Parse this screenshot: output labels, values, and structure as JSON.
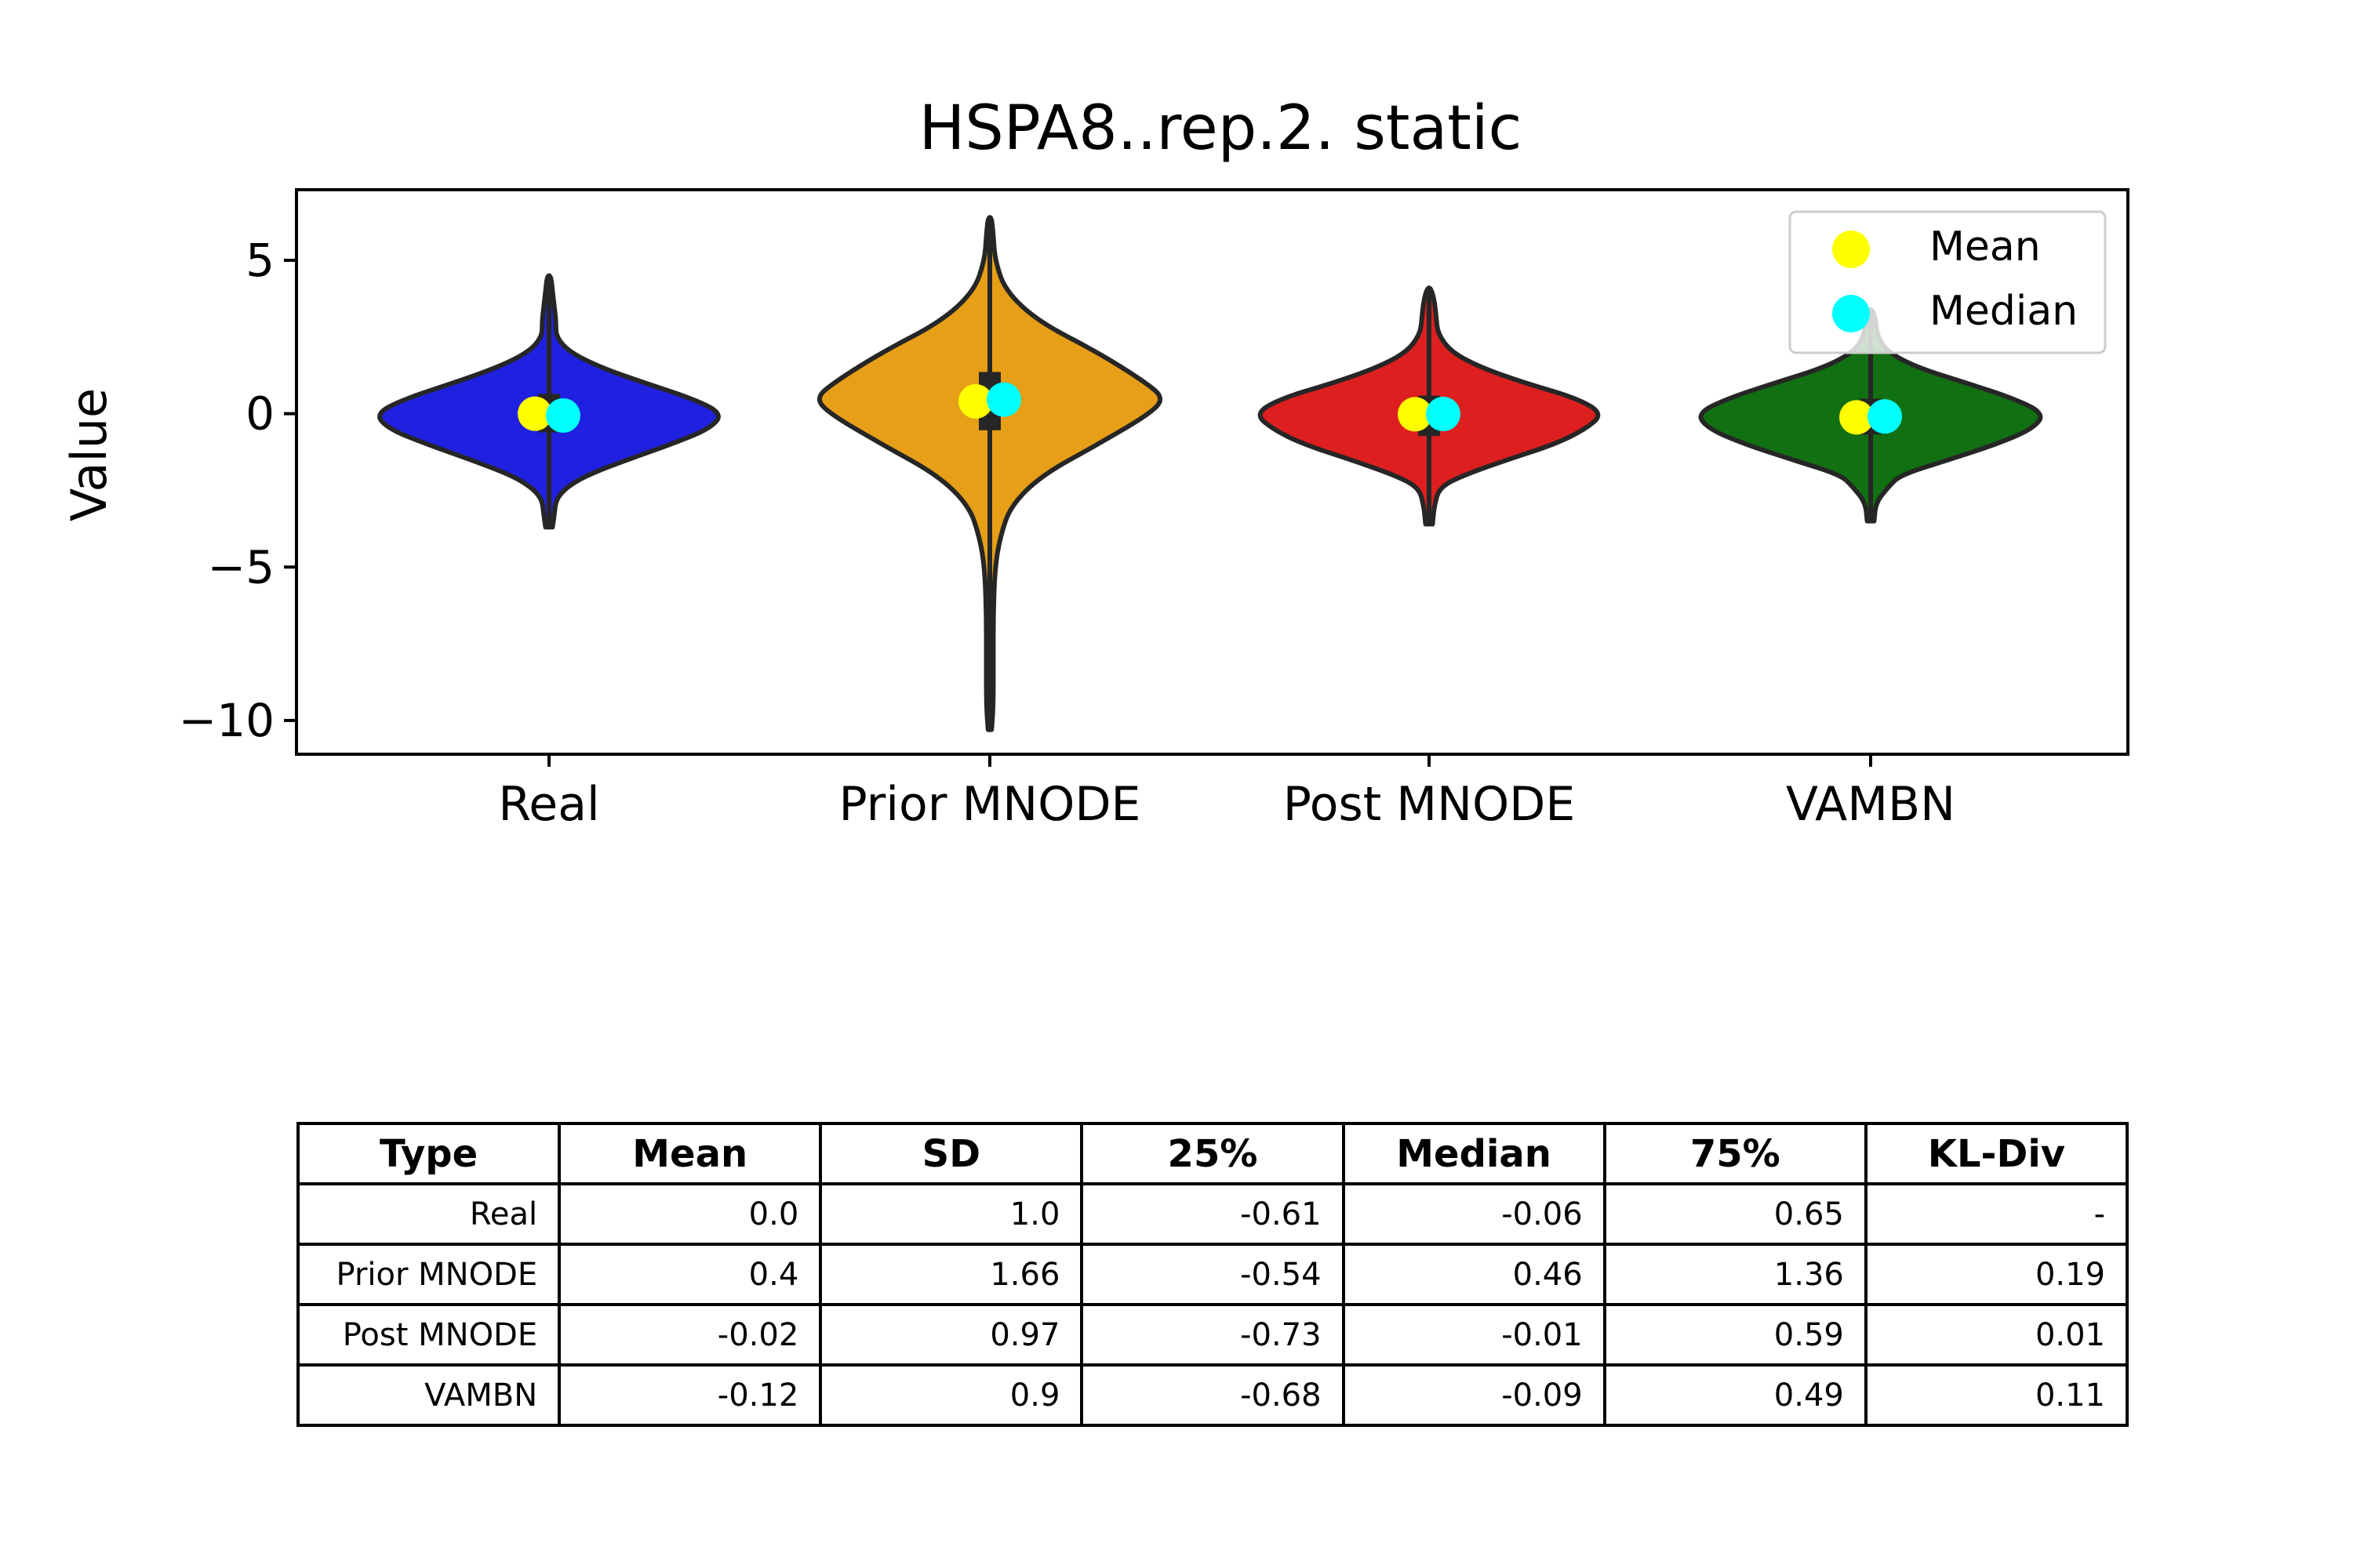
{
  "chart_data": {
    "type": "violin",
    "title": "HSPA8..rep.2. static",
    "ylabel": "Value",
    "xlabel": "",
    "ylim": [
      -11.1,
      7.3
    ],
    "yticks": [
      5,
      0,
      -5,
      -10
    ],
    "ytick_labels": [
      "5",
      "0",
      "−5",
      "−10"
    ],
    "categories": [
      "Real",
      "Prior MNODE",
      "Post MNODE",
      "VAMBN"
    ],
    "colors": [
      "#2020e0",
      "#e69f17",
      "#de1f1f",
      "#117011"
    ],
    "mean_color": "#ffff00",
    "median_color": "#00ffff",
    "legend": {
      "position": "top-right",
      "entries": [
        "Mean",
        "Median"
      ]
    },
    "series": [
      {
        "category": "Real",
        "mean": 0.0,
        "median": -0.06,
        "q1": -0.61,
        "q3": 0.65,
        "min": -3.7,
        "max": 4.5,
        "profile": [
          [
            -3.7,
            0.02
          ],
          [
            -3.3,
            0.03
          ],
          [
            -2.8,
            0.04
          ],
          [
            -2.4,
            0.1
          ],
          [
            -2.0,
            0.22
          ],
          [
            -1.5,
            0.45
          ],
          [
            -1.0,
            0.7
          ],
          [
            -0.5,
            0.92
          ],
          [
            0.0,
            1.0
          ],
          [
            0.5,
            0.82
          ],
          [
            1.0,
            0.55
          ],
          [
            1.5,
            0.3
          ],
          [
            2.0,
            0.12
          ],
          [
            2.5,
            0.04
          ],
          [
            3.0,
            0.04
          ],
          [
            3.5,
            0.03
          ],
          [
            4.0,
            0.02
          ],
          [
            4.5,
            0.01
          ]
        ]
      },
      {
        "category": "Prior MNODE",
        "mean": 0.4,
        "median": 0.46,
        "q1": -0.54,
        "q3": 1.36,
        "min": -10.3,
        "max": 6.4,
        "profile": [
          [
            -10.3,
            0.01
          ],
          [
            -9.5,
            0.02
          ],
          [
            -8.0,
            0.02
          ],
          [
            -6.5,
            0.02
          ],
          [
            -5.0,
            0.03
          ],
          [
            -4.0,
            0.06
          ],
          [
            -3.0,
            0.12
          ],
          [
            -2.0,
            0.3
          ],
          [
            -1.0,
            0.62
          ],
          [
            0.0,
            0.92
          ],
          [
            0.5,
            1.0
          ],
          [
            1.0,
            0.9
          ],
          [
            2.0,
            0.62
          ],
          [
            3.0,
            0.28
          ],
          [
            4.0,
            0.09
          ],
          [
            5.0,
            0.03
          ],
          [
            5.8,
            0.02
          ],
          [
            6.4,
            0.01
          ]
        ]
      },
      {
        "category": "Post MNODE",
        "mean": -0.02,
        "median": -0.01,
        "q1": -0.73,
        "q3": 0.59,
        "min": -3.6,
        "max": 4.1,
        "profile": [
          [
            -3.6,
            0.02
          ],
          [
            -3.0,
            0.03
          ],
          [
            -2.4,
            0.06
          ],
          [
            -2.0,
            0.2
          ],
          [
            -1.5,
            0.45
          ],
          [
            -1.0,
            0.72
          ],
          [
            -0.5,
            0.9
          ],
          [
            0.0,
            1.0
          ],
          [
            0.5,
            0.85
          ],
          [
            1.0,
            0.55
          ],
          [
            1.5,
            0.3
          ],
          [
            2.0,
            0.13
          ],
          [
            2.6,
            0.05
          ],
          [
            3.2,
            0.04
          ],
          [
            3.7,
            0.03
          ],
          [
            4.1,
            0.01
          ]
        ]
      },
      {
        "category": "VAMBN",
        "mean": -0.12,
        "median": -0.09,
        "q1": -0.68,
        "q3": 0.49,
        "min": -3.5,
        "max": 3.4,
        "profile": [
          [
            -3.5,
            0.02
          ],
          [
            -2.9,
            0.03
          ],
          [
            -2.4,
            0.1
          ],
          [
            -2.0,
            0.17
          ],
          [
            -1.5,
            0.45
          ],
          [
            -1.0,
            0.72
          ],
          [
            -0.5,
            0.93
          ],
          [
            0.0,
            1.0
          ],
          [
            0.5,
            0.82
          ],
          [
            1.0,
            0.55
          ],
          [
            1.5,
            0.27
          ],
          [
            2.0,
            0.1
          ],
          [
            2.5,
            0.04
          ],
          [
            3.0,
            0.03
          ],
          [
            3.4,
            0.01
          ]
        ]
      }
    ]
  },
  "table": {
    "headers": [
      "Type",
      "Mean",
      "SD",
      "25%",
      "Median",
      "75%",
      "KL-Div"
    ],
    "rows": [
      {
        "type": "Real",
        "mean": "0.0",
        "sd": "1.0",
        "q25": "-0.61",
        "median": "-0.06",
        "q75": "0.65",
        "kl": "-"
      },
      {
        "type": "Prior MNODE",
        "mean": "0.4",
        "sd": "1.66",
        "q25": "-0.54",
        "median": "0.46",
        "q75": "1.36",
        "kl": "0.19"
      },
      {
        "type": "Post MNODE",
        "mean": "-0.02",
        "sd": "0.97",
        "q25": "-0.73",
        "median": "-0.01",
        "q75": "0.59",
        "kl": "0.01"
      },
      {
        "type": "VAMBN",
        "mean": "-0.12",
        "sd": "0.9",
        "q25": "-0.68",
        "median": "-0.09",
        "q75": "0.49",
        "kl": "0.11"
      }
    ]
  }
}
